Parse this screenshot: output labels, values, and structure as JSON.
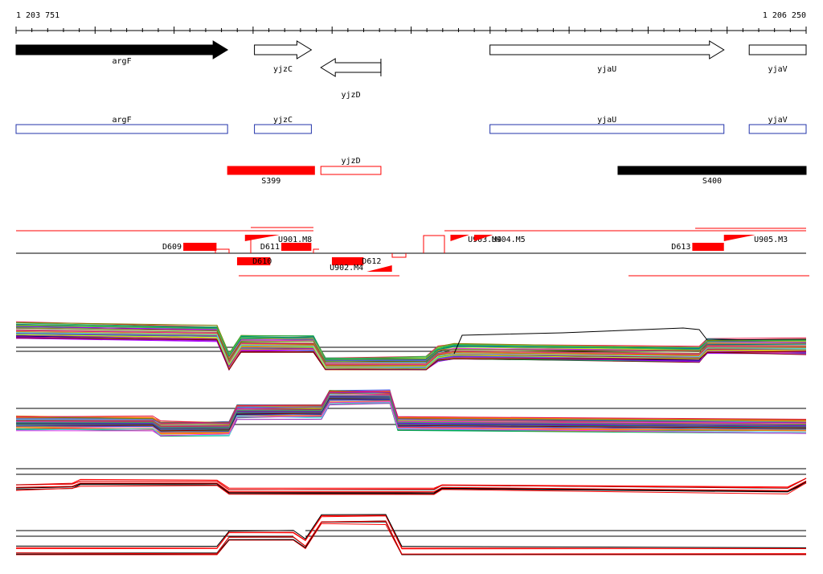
{
  "ruler": {
    "start_label": "1 203 751",
    "end_label": "1 206 250",
    "start": 1203751,
    "end": 1206250
  },
  "colors": {
    "black": "#000000",
    "red": "#ff0000",
    "blue": "#2233aa",
    "white": "#ffffff"
  },
  "genes": [
    {
      "name": "argF",
      "start": 1203751,
      "end": 1204420,
      "strand": "+",
      "filled": true
    },
    {
      "name": "yjzC",
      "start": 1204505,
      "end": 1204685,
      "strand": "+",
      "filled": false
    },
    {
      "name": "yjzD",
      "start": 1204715,
      "end": 1204905,
      "strand": "-",
      "filled": false
    },
    {
      "name": "yjaU",
      "start": 1205250,
      "end": 1205990,
      "strand": "+",
      "filled": false
    },
    {
      "name": "yjaV",
      "start": 1206070,
      "end": 1206250,
      "strand": "+",
      "filled": false
    }
  ],
  "gene_boxes": [
    {
      "name": "argF",
      "start": 1203751,
      "end": 1204420
    },
    {
      "name": "yjzC",
      "start": 1204505,
      "end": 1204685
    },
    {
      "name": "yjaU",
      "start": 1205250,
      "end": 1205990
    },
    {
      "name": "yjaV",
      "start": 1206070,
      "end": 1206250
    }
  ],
  "segments": [
    {
      "name": "S399",
      "start": 1204420,
      "end": 1204695,
      "color": "red",
      "filled": true
    },
    {
      "name": "yjzD",
      "start": 1204715,
      "end": 1204905,
      "color": "red",
      "filled": false
    },
    {
      "name": "S400",
      "start": 1205655,
      "end": 1206250,
      "color": "black",
      "filled": true
    }
  ],
  "features": [
    {
      "name": "D609",
      "kind": "block",
      "start": 1204280,
      "end": 1204385,
      "side": "up"
    },
    {
      "name": "D611",
      "kind": "block",
      "start": 1204590,
      "end": 1204685,
      "side": "up"
    },
    {
      "name": "D610",
      "kind": "block",
      "start": 1204450,
      "end": 1204555,
      "side": "down"
    },
    {
      "name": "D612",
      "kind": "block",
      "start": 1204750,
      "end": 1204850,
      "side": "down"
    },
    {
      "name": "D613",
      "kind": "block",
      "start": 1205890,
      "end": 1205990,
      "side": "up"
    },
    {
      "name": "U901.M8",
      "kind": "ramp",
      "start": 1204475,
      "end": 1204585,
      "side": "up"
    },
    {
      "name": "U902.M4",
      "kind": "ramp",
      "start": 1204860,
      "end": 1204940,
      "side": "down"
    },
    {
      "name": "U903.M4",
      "kind": "ramp",
      "start": 1205125,
      "end": 1205185,
      "side": "up"
    },
    {
      "name": "U904.M5",
      "kind": "ramp",
      "start": 1205200,
      "end": 1205260,
      "side": "up"
    },
    {
      "name": "U905.M3",
      "kind": "ramp",
      "start": 1205990,
      "end": 1206090,
      "side": "up"
    }
  ]
}
